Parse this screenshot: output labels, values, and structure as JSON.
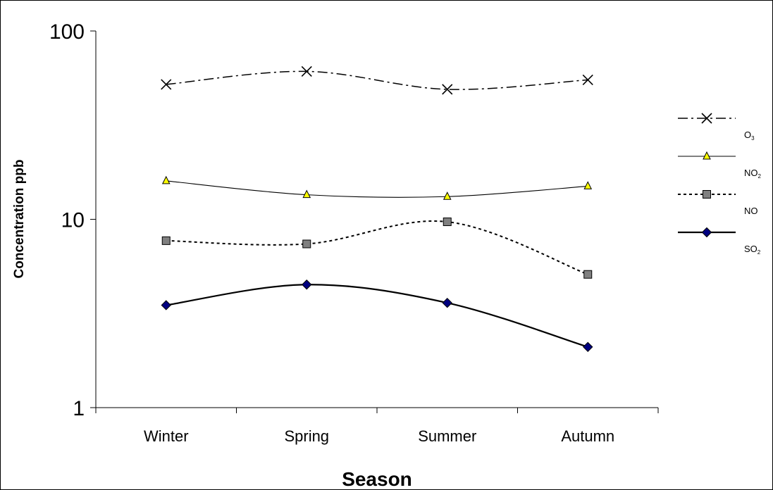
{
  "chart_data": {
    "type": "line",
    "xlabel": "Season",
    "ylabel": "Concentration ppb",
    "y_scale": "log",
    "ylim": [
      1,
      100
    ],
    "y_ticks": [
      "1",
      "10",
      "100"
    ],
    "categories": [
      "Winter",
      "Spring",
      "Summer",
      "Autumn"
    ],
    "grid": false,
    "legend_position": "right",
    "series": [
      {
        "name": "O",
        "subscript": "3",
        "values": [
          52,
          61,
          49,
          55
        ],
        "line_style": "dash-dot",
        "marker": "x",
        "color": "#000000",
        "marker_fill": "#000000"
      },
      {
        "name": "NO",
        "subscript": "2",
        "values": [
          16,
          13.5,
          13.2,
          15
        ],
        "line_style": "solid-thin",
        "marker": "triangle",
        "color": "#000000",
        "marker_fill": "#ffff00"
      },
      {
        "name": "NO",
        "subscript": "",
        "values": [
          7.7,
          7.4,
          9.7,
          5.1
        ],
        "line_style": "dotted",
        "marker": "square",
        "color": "#000000",
        "marker_fill": "#808080"
      },
      {
        "name": "SO",
        "subscript": "2",
        "values": [
          3.5,
          4.5,
          3.6,
          2.1
        ],
        "line_style": "solid-thick",
        "marker": "diamond",
        "color": "#000000",
        "marker_fill": "#000080"
      }
    ]
  }
}
